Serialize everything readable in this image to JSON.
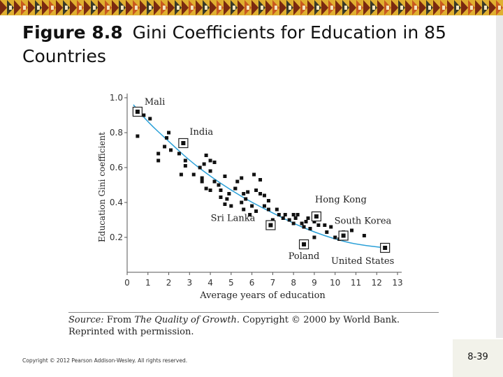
{
  "slide": {
    "title_number": "Figure 8.8",
    "title_text": "Gini Coefficients for Education in 85 Countries",
    "source_label": "Source:",
    "source_pre": " From ",
    "source_italic": "The Quality of Growth.",
    "source_post": " Copyright © 2000 by World Bank. Reprinted with permission.",
    "copyright": "Copyright © 2012 Pearson Addison-Wesley. All rights reserved.",
    "page_number": "8-39"
  },
  "colors": {
    "curve": "#2aa0d8",
    "point": "#111111",
    "banner_a": "#7a2a10",
    "banner_b": "#e0b030"
  },
  "chart_data": {
    "type": "scatter",
    "title": "",
    "xlabel": "Average years of education",
    "ylabel": "Education Gini coefficient",
    "xlim": [
      0,
      13
    ],
    "ylim": [
      0,
      1.0
    ],
    "x_ticks": [
      0,
      1,
      2,
      3,
      4,
      5,
      6,
      7,
      8,
      9,
      10,
      11,
      12,
      13
    ],
    "y_ticks": [
      0.2,
      0.4,
      0.6,
      0.8,
      1.0
    ],
    "grid": false,
    "points": [
      {
        "x": 0.5,
        "y": 0.78
      },
      {
        "x": 0.8,
        "y": 0.9
      },
      {
        "x": 1.1,
        "y": 0.88
      },
      {
        "x": 1.5,
        "y": 0.64
      },
      {
        "x": 1.5,
        "y": 0.68
      },
      {
        "x": 1.8,
        "y": 0.72
      },
      {
        "x": 1.9,
        "y": 0.77
      },
      {
        "x": 2.0,
        "y": 0.8
      },
      {
        "x": 2.1,
        "y": 0.7
      },
      {
        "x": 2.5,
        "y": 0.68
      },
      {
        "x": 2.6,
        "y": 0.56
      },
      {
        "x": 2.8,
        "y": 0.64
      },
      {
        "x": 2.8,
        "y": 0.61
      },
      {
        "x": 3.2,
        "y": 0.56
      },
      {
        "x": 3.5,
        "y": 0.6
      },
      {
        "x": 3.6,
        "y": 0.54
      },
      {
        "x": 3.6,
        "y": 0.52
      },
      {
        "x": 3.7,
        "y": 0.62
      },
      {
        "x": 3.8,
        "y": 0.67
      },
      {
        "x": 3.8,
        "y": 0.48
      },
      {
        "x": 4.0,
        "y": 0.64
      },
      {
        "x": 4.0,
        "y": 0.47
      },
      {
        "x": 4.0,
        "y": 0.58
      },
      {
        "x": 4.2,
        "y": 0.63
      },
      {
        "x": 4.2,
        "y": 0.52
      },
      {
        "x": 4.4,
        "y": 0.5
      },
      {
        "x": 4.5,
        "y": 0.43
      },
      {
        "x": 4.5,
        "y": 0.47
      },
      {
        "x": 4.7,
        "y": 0.55
      },
      {
        "x": 4.7,
        "y": 0.39
      },
      {
        "x": 4.8,
        "y": 0.42
      },
      {
        "x": 4.9,
        "y": 0.45
      },
      {
        "x": 5.0,
        "y": 0.38
      },
      {
        "x": 5.2,
        "y": 0.48
      },
      {
        "x": 5.2,
        "y": 0.48
      },
      {
        "x": 5.3,
        "y": 0.52
      },
      {
        "x": 5.5,
        "y": 0.4
      },
      {
        "x": 5.5,
        "y": 0.54
      },
      {
        "x": 5.6,
        "y": 0.45
      },
      {
        "x": 5.6,
        "y": 0.36
      },
      {
        "x": 5.7,
        "y": 0.42
      },
      {
        "x": 5.8,
        "y": 0.46
      },
      {
        "x": 5.9,
        "y": 0.33
      },
      {
        "x": 6.0,
        "y": 0.38
      },
      {
        "x": 6.1,
        "y": 0.56
      },
      {
        "x": 6.2,
        "y": 0.47
      },
      {
        "x": 6.2,
        "y": 0.35
      },
      {
        "x": 6.4,
        "y": 0.45
      },
      {
        "x": 6.4,
        "y": 0.53
      },
      {
        "x": 6.6,
        "y": 0.44
      },
      {
        "x": 6.6,
        "y": 0.38
      },
      {
        "x": 6.8,
        "y": 0.41
      },
      {
        "x": 6.8,
        "y": 0.36
      },
      {
        "x": 7.0,
        "y": 0.3
      },
      {
        "x": 7.2,
        "y": 0.36
      },
      {
        "x": 7.3,
        "y": 0.33
      },
      {
        "x": 7.5,
        "y": 0.31
      },
      {
        "x": 7.6,
        "y": 0.33
      },
      {
        "x": 7.8,
        "y": 0.3
      },
      {
        "x": 8.0,
        "y": 0.28
      },
      {
        "x": 8.0,
        "y": 0.33
      },
      {
        "x": 8.1,
        "y": 0.31
      },
      {
        "x": 8.2,
        "y": 0.33
      },
      {
        "x": 8.4,
        "y": 0.28
      },
      {
        "x": 8.5,
        "y": 0.26
      },
      {
        "x": 8.6,
        "y": 0.29
      },
      {
        "x": 8.7,
        "y": 0.31
      },
      {
        "x": 8.8,
        "y": 0.25
      },
      {
        "x": 9.0,
        "y": 0.2
      },
      {
        "x": 9.0,
        "y": 0.29
      },
      {
        "x": 9.2,
        "y": 0.27
      },
      {
        "x": 9.5,
        "y": 0.27
      },
      {
        "x": 9.6,
        "y": 0.23
      },
      {
        "x": 9.8,
        "y": 0.26
      },
      {
        "x": 10.0,
        "y": 0.2
      },
      {
        "x": 10.2,
        "y": 0.19
      },
      {
        "x": 10.4,
        "y": 0.23
      },
      {
        "x": 10.8,
        "y": 0.24
      },
      {
        "x": 11.4,
        "y": 0.21
      }
    ],
    "labeled_points": [
      {
        "name": "Mali",
        "x": 0.5,
        "y": 0.92
      },
      {
        "name": "India",
        "x": 2.7,
        "y": 0.74
      },
      {
        "name": "Sri Lanka",
        "x": 6.9,
        "y": 0.27
      },
      {
        "name": "Poland",
        "x": 8.5,
        "y": 0.16
      },
      {
        "name": "Hong Kong",
        "x": 9.1,
        "y": 0.32
      },
      {
        "name": "South Korea",
        "x": 10.4,
        "y": 0.21
      },
      {
        "name": "United States",
        "x": 12.4,
        "y": 0.14
      }
    ],
    "trend_curve": [
      {
        "x": 0.3,
        "y": 0.96
      },
      {
        "x": 1,
        "y": 0.86
      },
      {
        "x": 2,
        "y": 0.75
      },
      {
        "x": 3,
        "y": 0.64
      },
      {
        "x": 4,
        "y": 0.55
      },
      {
        "x": 5,
        "y": 0.47
      },
      {
        "x": 6,
        "y": 0.4
      },
      {
        "x": 7,
        "y": 0.34
      },
      {
        "x": 8,
        "y": 0.28
      },
      {
        "x": 9,
        "y": 0.23
      },
      {
        "x": 10,
        "y": 0.19
      },
      {
        "x": 11,
        "y": 0.16
      },
      {
        "x": 12.4,
        "y": 0.14
      }
    ]
  }
}
